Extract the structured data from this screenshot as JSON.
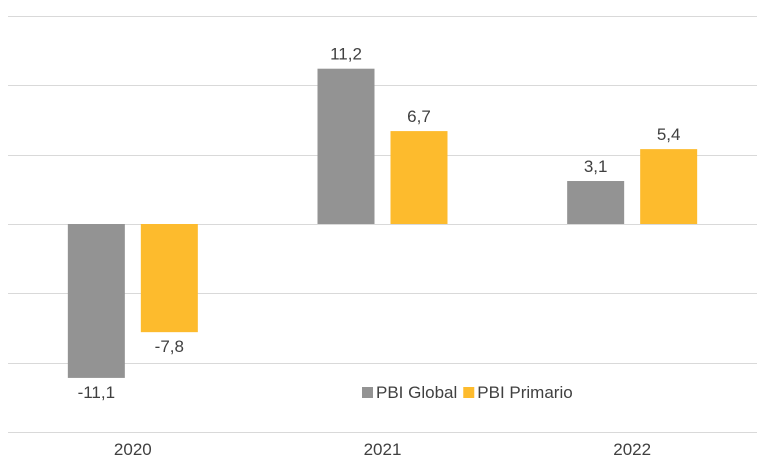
{
  "chart_data": {
    "type": "bar",
    "categories": [
      "2020",
      "2021",
      "2022"
    ],
    "series": [
      {
        "name": "PBI Global",
        "values": [
          -11.1,
          11.2,
          3.1
        ],
        "labels": [
          "-11,1",
          "11,2",
          "3,1"
        ],
        "color": "#939393"
      },
      {
        "name": "PBI Primario",
        "values": [
          -7.8,
          6.7,
          5.4
        ],
        "labels": [
          "-7,8",
          "6,7",
          "5,4"
        ],
        "color": "#FDBB2D"
      }
    ],
    "title": "",
    "xlabel": "",
    "ylabel": "",
    "ylim": [
      -15,
      15
    ],
    "grid": true,
    "legend_position": "bottom-center"
  }
}
